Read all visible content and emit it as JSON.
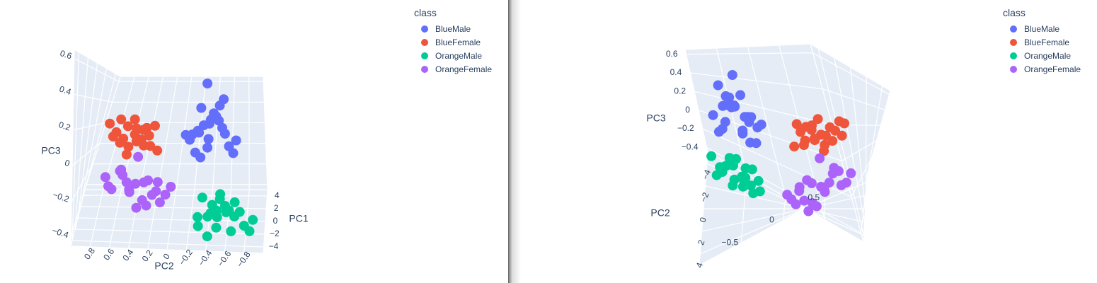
{
  "colors": {
    "BlueMale": "#636efa",
    "BlueFemale": "#ef553b",
    "OrangeMale": "#00cc96",
    "OrangeFemale": "#ab63fa",
    "scene_bg": "#e5ecf6",
    "grid": "#ffffff"
  },
  "legend": {
    "title": "class",
    "items": [
      {
        "name": "BlueMale",
        "color": "#636efa"
      },
      {
        "name": "BlueFemale",
        "color": "#ef553b"
      },
      {
        "name": "OrangeMale",
        "color": "#00cc96"
      },
      {
        "name": "OrangeFemale",
        "color": "#ab63fa"
      }
    ]
  },
  "chart_data": [
    {
      "type": "scatter",
      "subtype": "scatter3d",
      "view": "left",
      "xlabel": "PC1",
      "ylabel": "PC2",
      "zlabel": "PC3",
      "xticks": [
        "4",
        "2",
        "0",
        "−2",
        "−4"
      ],
      "yticks": [
        "0.8",
        "0.6",
        "0.4",
        "0.2",
        "0",
        "−0.2",
        "−0.4",
        "−0.6",
        "−0.8"
      ],
      "zticks": [
        "0.6",
        "0.4",
        "0.2",
        "0",
        "−0.2",
        "−0.4"
      ],
      "legend_position": "top-right",
      "grid": true,
      "series": [
        {
          "name": "BlueMale",
          "points": [
            [
              -0.4,
              -0.35,
              0.25
            ],
            [
              -0.7,
              -0.3,
              0.2
            ],
            [
              -1.2,
              -0.45,
              0.3
            ],
            [
              -1.0,
              -0.2,
              0.15
            ],
            [
              -1.5,
              -0.55,
              0.3
            ],
            [
              -0.9,
              -0.4,
              0.1
            ],
            [
              -0.3,
              -0.25,
              0.05
            ],
            [
              -1.8,
              -0.5,
              0.35
            ],
            [
              -0.6,
              -0.6,
              0.2
            ],
            [
              -1.3,
              -0.3,
              0.22
            ],
            [
              -2.0,
              -0.45,
              0.28
            ],
            [
              -0.8,
              -0.15,
              0.18
            ],
            [
              -1.1,
              -0.65,
              0.12
            ],
            [
              -1.6,
              -0.35,
              0.38
            ],
            [
              -0.5,
              -0.5,
              0.32
            ],
            [
              -2.2,
              -0.6,
              0.26
            ],
            [
              -1.4,
              -0.7,
              0.08
            ],
            [
              -0.2,
              -0.4,
              0.15
            ],
            [
              -1.9,
              -0.25,
              0.2
            ],
            [
              -0.7,
              -0.55,
              0.4
            ],
            [
              -1.25,
              -0.42,
              0.55
            ],
            [
              -2.1,
              -0.75,
              0.18
            ],
            [
              -0.95,
              -0.32,
              0.03
            ],
            [
              -1.7,
              -0.62,
              0.45
            ]
          ]
        },
        {
          "name": "BlueFemale",
          "points": [
            [
              0.2,
              0.3,
              0.15
            ],
            [
              0.5,
              0.45,
              0.1
            ],
            [
              0.8,
              0.35,
              0.2
            ],
            [
              1.0,
              0.55,
              0.05
            ],
            [
              0.3,
              0.6,
              0.12
            ],
            [
              1.2,
              0.4,
              0.18
            ],
            [
              0.6,
              0.25,
              0.22
            ],
            [
              0.9,
              0.65,
              0.08
            ],
            [
              1.4,
              0.5,
              0.14
            ],
            [
              0.1,
              0.45,
              0.2
            ],
            [
              0.7,
              0.7,
              0.16
            ],
            [
              1.1,
              0.3,
              0.06
            ],
            [
              1.6,
              0.6,
              0.2
            ],
            [
              0.4,
              0.2,
              0.04
            ],
            [
              0.8,
              0.5,
              0.26
            ],
            [
              1.3,
              0.75,
              0.12
            ],
            [
              0.0,
              0.35,
              0.08
            ],
            [
              1.8,
              0.7,
              0.25
            ],
            [
              0.55,
              0.55,
              0.0
            ],
            [
              1.5,
              0.42,
              0.1
            ],
            [
              1.0,
              0.8,
              0.22
            ]
          ]
        },
        {
          "name": "OrangeMale",
          "points": [
            [
              -2.0,
              -0.5,
              -0.3
            ],
            [
              -2.5,
              -0.6,
              -0.25
            ],
            [
              -1.8,
              -0.4,
              -0.35
            ],
            [
              -3.0,
              -0.7,
              -0.3
            ],
            [
              -2.2,
              -0.3,
              -0.4
            ],
            [
              -2.7,
              -0.55,
              -0.2
            ],
            [
              -1.5,
              -0.45,
              -0.28
            ],
            [
              -3.2,
              -0.8,
              -0.35
            ],
            [
              -2.4,
              -0.65,
              -0.42
            ],
            [
              -1.9,
              -0.35,
              -0.22
            ],
            [
              -2.9,
              -0.5,
              -0.38
            ],
            [
              -2.1,
              -0.75,
              -0.3
            ],
            [
              -1.7,
              -0.6,
              -0.32
            ],
            [
              -3.4,
              -0.65,
              -0.25
            ],
            [
              -2.6,
              -0.4,
              -0.45
            ],
            [
              -2.3,
              -0.55,
              -0.18
            ],
            [
              -2.8,
              -0.85,
              -0.4
            ],
            [
              -1.6,
              -0.5,
              -0.36
            ],
            [
              -3.1,
              -0.45,
              -0.28
            ],
            [
              -2.0,
              -0.7,
              -0.24
            ],
            [
              -2.5,
              -0.3,
              -0.33
            ],
            [
              -3.5,
              -0.9,
              -0.3
            ]
          ]
        },
        {
          "name": "OrangeFemale",
          "points": [
            [
              1.5,
              0.2,
              -0.3
            ],
            [
              2.0,
              0.35,
              -0.25
            ],
            [
              2.5,
              0.5,
              -0.35
            ],
            [
              1.8,
              0.15,
              -0.4
            ],
            [
              2.2,
              0.6,
              -0.2
            ],
            [
              3.0,
              0.45,
              -0.3
            ],
            [
              1.6,
              0.3,
              -0.22
            ],
            [
              2.7,
              0.25,
              -0.38
            ],
            [
              2.3,
              0.7,
              -0.32
            ],
            [
              1.9,
              0.4,
              -0.45
            ],
            [
              2.8,
              0.55,
              -0.28
            ],
            [
              2.1,
              0.1,
              -0.35
            ],
            [
              3.2,
              0.65,
              -0.2
            ],
            [
              1.7,
              0.5,
              -0.3
            ],
            [
              2.6,
              0.35,
              -0.42
            ],
            [
              2.4,
              0.2,
              -0.26
            ],
            [
              3.4,
              0.75,
              -0.34
            ],
            [
              1.95,
              0.62,
              -0.15
            ],
            [
              2.9,
              0.3,
              -0.48
            ],
            [
              2.15,
              0.45,
              -0.05
            ],
            [
              3.1,
              0.8,
              -0.25
            ],
            [
              2.45,
              0.05,
              -0.3
            ]
          ]
        }
      ]
    },
    {
      "type": "scatter",
      "subtype": "scatter3d",
      "view": "right",
      "xlabel": "",
      "ylabel": "PC2",
      "zlabel": "PC3",
      "xticks": [
        "4",
        "2",
        "0",
        "−2",
        "−4"
      ],
      "yticks": [
        "−0.5",
        "0",
        "0.5"
      ],
      "zticks": [
        "0.6",
        "0.4",
        "0.2",
        "0",
        "−0.2",
        "−0.4"
      ],
      "legend_position": "top-right",
      "grid": true,
      "series_ref": "same data as left view"
    }
  ]
}
